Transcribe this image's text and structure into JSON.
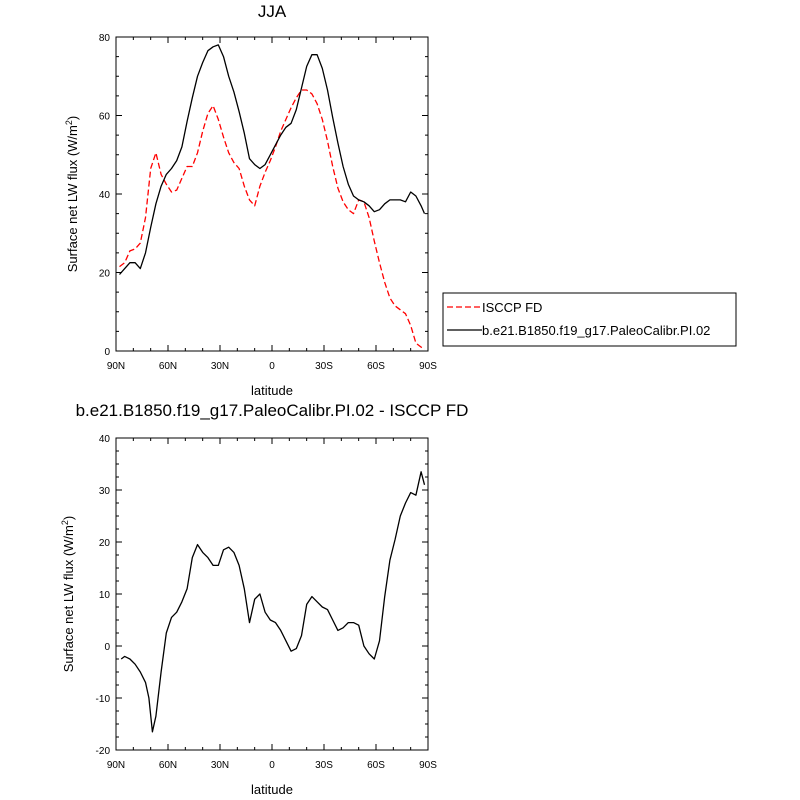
{
  "chart_data": [
    {
      "type": "line",
      "title": "JJA",
      "xlabel": "latitude",
      "ylabel": "Surface net LW flux (W/m",
      "ylabel_sup": "2",
      "ylabel_close": ")",
      "ylim": [
        0,
        80
      ],
      "yticks": [
        0,
        20,
        40,
        60,
        80
      ],
      "yticklabels": [
        "0",
        "20",
        "40",
        "60",
        "80"
      ],
      "xlim": [
        90,
        -90
      ],
      "xticks": [
        90,
        60,
        30,
        0,
        -30,
        -60,
        -90
      ],
      "xticklabels": [
        "90N",
        "60N",
        "30N",
        "0",
        "30S",
        "60S",
        "90S"
      ],
      "grid": false,
      "legend_position": "right",
      "series": [
        {
          "name": "ISCCP FD",
          "color": "#ff0000",
          "dash": "dashed",
          "x": [
            88,
            85,
            82,
            79,
            76,
            73,
            70,
            67,
            64,
            61,
            58,
            55,
            52,
            49,
            46,
            43,
            40,
            37,
            34,
            31,
            28,
            25,
            22,
            19,
            16,
            13,
            10,
            7,
            4,
            1,
            -2,
            -5,
            -8,
            -11,
            -14,
            -17,
            -20,
            -23,
            -26,
            -29,
            -32,
            -35,
            -38,
            -41,
            -44,
            -47,
            -50,
            -53,
            -56,
            -59,
            -62,
            -65,
            -68,
            -71,
            -74,
            -77,
            -80,
            -83,
            -86,
            -88
          ],
          "y": [
            21.5,
            22.5,
            25.5,
            26,
            27.5,
            34,
            46.5,
            50.5,
            45,
            42.5,
            40.5,
            41,
            44,
            47,
            47,
            50.5,
            56,
            60.5,
            62.5,
            59,
            54.5,
            50.5,
            48,
            46.5,
            42,
            38.5,
            37,
            42,
            45.5,
            48.5,
            52,
            56,
            59,
            62,
            64.5,
            66.5,
            66.5,
            65.5,
            63,
            59,
            53.5,
            47,
            41.5,
            38,
            36,
            35,
            38.5,
            38,
            34,
            28,
            22.5,
            17.5,
            13.5,
            11.5,
            10.5,
            9.5,
            6.5,
            2,
            1,
            0.5
          ]
        },
        {
          "name": "b.e21.B1850.f19_g17.PaleoCalibr.PI.02",
          "color": "#000000",
          "dash": "solid",
          "x": [
            88,
            85,
            82,
            79,
            76,
            73,
            70,
            67,
            64,
            61,
            58,
            55,
            52,
            49,
            46,
            43,
            40,
            37,
            34,
            31,
            28,
            25,
            22,
            19,
            16,
            13,
            10,
            7,
            4,
            1,
            -2,
            -5,
            -8,
            -11,
            -14,
            -17,
            -20,
            -23,
            -26,
            -29,
            -32,
            -35,
            -38,
            -41,
            -44,
            -47,
            -50,
            -53,
            -56,
            -59,
            -62,
            -65,
            -68,
            -71,
            -74,
            -77,
            -80,
            -83,
            -86,
            -88
          ],
          "y": [
            19.5,
            21,
            22.5,
            22.5,
            21,
            25,
            31.5,
            37.5,
            42,
            45,
            46.5,
            48.5,
            52,
            58.5,
            64.5,
            70,
            73.5,
            76.5,
            77.5,
            78,
            75,
            70,
            66,
            61,
            55.5,
            49,
            47.5,
            46.5,
            47.5,
            50,
            52.5,
            55,
            57,
            58,
            61.5,
            67,
            72.5,
            75.5,
            75.5,
            72,
            66.5,
            59.5,
            53,
            47,
            42.5,
            39.5,
            38.5,
            38,
            37,
            35.5,
            36,
            37.5,
            38.5,
            38.5,
            38.5,
            38,
            40.5,
            39.5,
            37,
            35
          ]
        }
      ]
    },
    {
      "type": "line",
      "title": "b.e21.B1850.f19_g17.PaleoCalibr.PI.02 - ISCCP FD",
      "xlabel": "latitude",
      "ylabel": "Surface net LW flux (W/m",
      "ylabel_sup": "2",
      "ylabel_close": ")",
      "ylim": [
        -20,
        40
      ],
      "yticks": [
        -20,
        -10,
        0,
        10,
        20,
        30,
        40
      ],
      "yticklabels": [
        "-20",
        "-10",
        "0",
        "10",
        "20",
        "30",
        "40"
      ],
      "xlim": [
        90,
        -90
      ],
      "xticks": [
        90,
        60,
        30,
        0,
        -30,
        -60,
        -90
      ],
      "xticklabels": [
        "90N",
        "60N",
        "30N",
        "0",
        "30S",
        "60S",
        "90S"
      ],
      "grid": false,
      "series": [
        {
          "color": "#000000",
          "dash": "solid",
          "x": [
            87,
            85,
            82,
            79,
            76,
            73,
            71,
            69,
            67,
            64,
            61,
            58,
            55,
            52,
            49,
            46,
            43,
            40,
            37,
            34,
            31,
            28,
            25,
            22,
            19,
            16,
            13,
            10,
            7,
            4,
            1,
            -2,
            -5,
            -8,
            -11,
            -14,
            -17,
            -20,
            -23,
            -26,
            -29,
            -32,
            -35,
            -38,
            -41,
            -44,
            -47,
            -50,
            -53,
            -56,
            -59,
            -62,
            -65,
            -68,
            -71,
            -74,
            -77,
            -80,
            -83,
            -86,
            -88
          ],
          "y": [
            -2.5,
            -2,
            -2.5,
            -3.5,
            -5,
            -7,
            -10,
            -16.5,
            -13.5,
            -5,
            2.5,
            5.5,
            6.5,
            8.5,
            11,
            17,
            19.5,
            18,
            17,
            15.5,
            15.5,
            18.5,
            19,
            18,
            15.5,
            11,
            4.5,
            9,
            10,
            6.5,
            5,
            4.5,
            3,
            1,
            -1,
            -0.5,
            2,
            8,
            9.5,
            8.5,
            7.5,
            7,
            5,
            3,
            3.5,
            4.5,
            4.5,
            4,
            0,
            -1.5,
            -2.5,
            1,
            9.5,
            16.5,
            20.5,
            25,
            27.5,
            29.5,
            29,
            33.5,
            31
          ]
        }
      ]
    }
  ]
}
